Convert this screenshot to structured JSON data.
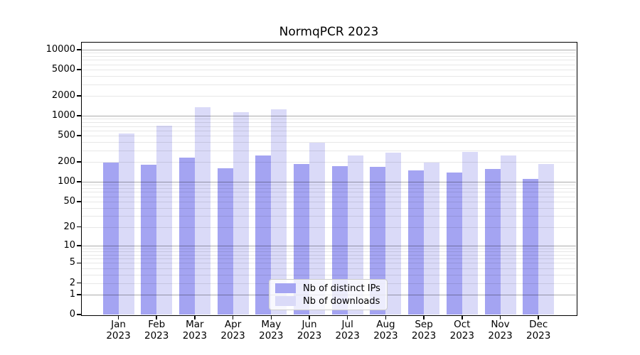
{
  "title": "NormqPCR 2023",
  "chart_data": {
    "type": "bar",
    "title": "NormqPCR 2023",
    "yscale": "log1p",
    "grid": true,
    "legend_position": "lower-center",
    "categories": [
      "Jan",
      "Feb",
      "Mar",
      "Apr",
      "May",
      "Jun",
      "Jul",
      "Aug",
      "Sep",
      "Oct",
      "Nov",
      "Dec"
    ],
    "category_year": "2023",
    "series": [
      {
        "name": "Nb of distinct IPs",
        "color": "#a4a4f2",
        "values": [
          196,
          180,
          232,
          162,
          252,
          188,
          175,
          168,
          151,
          140,
          158,
          112
        ]
      },
      {
        "name": "Nb of downloads",
        "color": "#dadaf8",
        "values": [
          545,
          715,
          1350,
          1140,
          1260,
          395,
          252,
          280,
          196,
          287,
          252,
          188
        ]
      }
    ],
    "yticks": [
      0,
      1,
      2,
      5,
      10,
      20,
      50,
      100,
      200,
      500,
      1000,
      2000,
      5000,
      10000
    ],
    "ylim": [
      0,
      12800
    ],
    "xlabel": "",
    "ylabel": ""
  },
  "colors": {
    "background": "#ffffff",
    "spine": "#000000",
    "major_grid": "#a9a9a9",
    "minor_grid": "#e6e6e6",
    "bar_distinct_ips": "#a4a4f2",
    "bar_downloads": "#dadaf8"
  }
}
